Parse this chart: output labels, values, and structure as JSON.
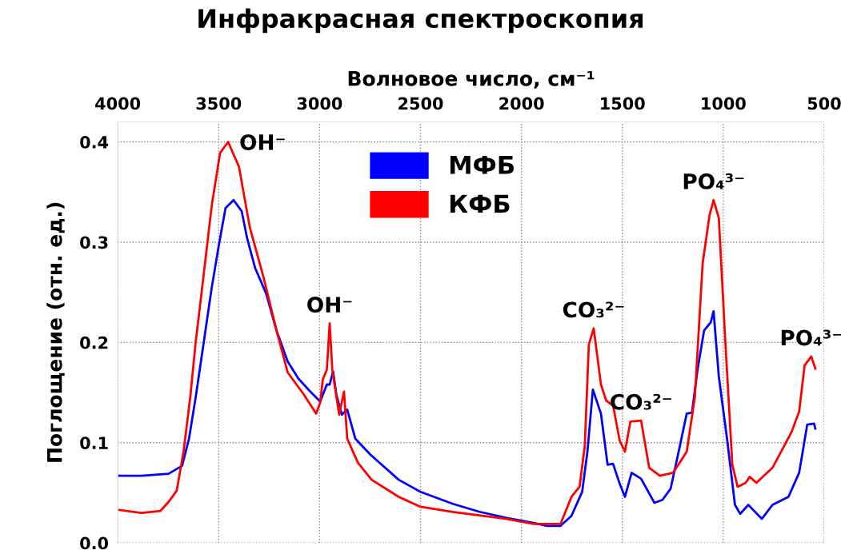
{
  "chart_data": {
    "type": "line",
    "title": "Инфракрасная спектроскопия",
    "xlabel": "Волновое число, см⁻¹",
    "ylabel": "Поглощение (отн. ед.)",
    "xlim": [
      4000,
      500
    ],
    "xticks": [
      4000,
      3500,
      3000,
      2500,
      2000,
      1500,
      1000,
      500
    ],
    "ylim": [
      0,
      0.42
    ],
    "yticks": [
      {
        "value": 0,
        "label": "0.0"
      },
      {
        "value": 0.1,
        "label": "0.1"
      },
      {
        "value": 0.2,
        "label": "0.2"
      },
      {
        "value": 0.3,
        "label": "0.3"
      },
      {
        "value": 0.4,
        "label": "0.4"
      }
    ],
    "grid": true,
    "legend": "top center",
    "marker": "none",
    "line_style": "solid",
    "series": [
      {
        "name": "МФБ",
        "color": "#0000ff",
        "x": [
          3996,
          3882,
          3748,
          3681,
          3647,
          3614,
          3574,
          3534,
          3500,
          3466,
          3426,
          3386,
          3359,
          3319,
          3265,
          3212,
          3158,
          3105,
          3051,
          2997,
          2964,
          2950,
          2933,
          2917,
          2890,
          2863,
          2823,
          2748,
          2608,
          2500,
          2340,
          2207,
          2073,
          1940,
          1873,
          1806,
          1752,
          1699,
          1673,
          1646,
          1606,
          1573,
          1546,
          1513,
          1487,
          1454,
          1407,
          1341,
          1301,
          1261,
          1221,
          1181,
          1155,
          1128,
          1095,
          1062,
          1048,
          1022,
          982,
          942,
          916,
          876,
          809,
          756,
          677,
          624,
          584,
          550,
          544
        ],
        "values": [
          0.067,
          0.067,
          0.069,
          0.077,
          0.104,
          0.145,
          0.2,
          0.255,
          0.296,
          0.334,
          0.342,
          0.331,
          0.304,
          0.274,
          0.249,
          0.211,
          0.181,
          0.164,
          0.152,
          0.141,
          0.158,
          0.158,
          0.171,
          0.148,
          0.128,
          0.133,
          0.104,
          0.088,
          0.063,
          0.051,
          0.039,
          0.031,
          0.025,
          0.02,
          0.017,
          0.017,
          0.027,
          0.051,
          0.091,
          0.153,
          0.129,
          0.078,
          0.079,
          0.059,
          0.046,
          0.07,
          0.064,
          0.04,
          0.043,
          0.054,
          0.091,
          0.129,
          0.13,
          0.172,
          0.212,
          0.22,
          0.231,
          0.166,
          0.105,
          0.038,
          0.029,
          0.038,
          0.024,
          0.038,
          0.046,
          0.07,
          0.118,
          0.119,
          0.114
        ]
      },
      {
        "name": "КФБ",
        "color": "#ff0000",
        "x": [
          3996,
          3882,
          3788,
          3748,
          3708,
          3674,
          3641,
          3614,
          3574,
          3534,
          3493,
          3453,
          3399,
          3346,
          3279,
          3212,
          3158,
          3078,
          3017,
          2997,
          2984,
          2964,
          2950,
          2937,
          2903,
          2879,
          2863,
          2810,
          2742,
          2608,
          2500,
          2340,
          2073,
          1940,
          1806,
          1752,
          1712,
          1686,
          1666,
          1642,
          1606,
          1580,
          1546,
          1513,
          1487,
          1460,
          1407,
          1367,
          1314,
          1248,
          1181,
          1141,
          1102,
          1068,
          1048,
          1022,
          989,
          955,
          929,
          889,
          869,
          836,
          756,
          663,
          624,
          597,
          564,
          544
        ],
        "values": [
          0.033,
          0.03,
          0.032,
          0.041,
          0.052,
          0.091,
          0.145,
          0.2,
          0.268,
          0.337,
          0.389,
          0.4,
          0.375,
          0.315,
          0.266,
          0.211,
          0.17,
          0.148,
          0.129,
          0.14,
          0.163,
          0.173,
          0.219,
          0.173,
          0.128,
          0.151,
          0.104,
          0.08,
          0.063,
          0.046,
          0.036,
          0.031,
          0.024,
          0.019,
          0.019,
          0.046,
          0.056,
          0.097,
          0.198,
          0.214,
          0.158,
          0.142,
          0.137,
          0.102,
          0.091,
          0.121,
          0.122,
          0.075,
          0.067,
          0.07,
          0.091,
          0.145,
          0.279,
          0.327,
          0.342,
          0.324,
          0.198,
          0.078,
          0.056,
          0.06,
          0.066,
          0.06,
          0.075,
          0.11,
          0.131,
          0.177,
          0.186,
          0.174
        ]
      }
    ],
    "annotations": [
      {
        "text": "OH⁻",
        "x": 3453,
        "y": 0.4
      },
      {
        "text": "OH⁻",
        "x": 2950,
        "y": 0.219
      },
      {
        "text": "CO₃²⁻",
        "x": 1642,
        "y": 0.214
      },
      {
        "text": "CO₃²⁻",
        "x": 1407,
        "y": 0.122
      },
      {
        "text": "PO₄³⁻",
        "x": 1048,
        "y": 0.342
      },
      {
        "text": "PO₄³⁻",
        "x": 564,
        "y": 0.186
      }
    ]
  }
}
